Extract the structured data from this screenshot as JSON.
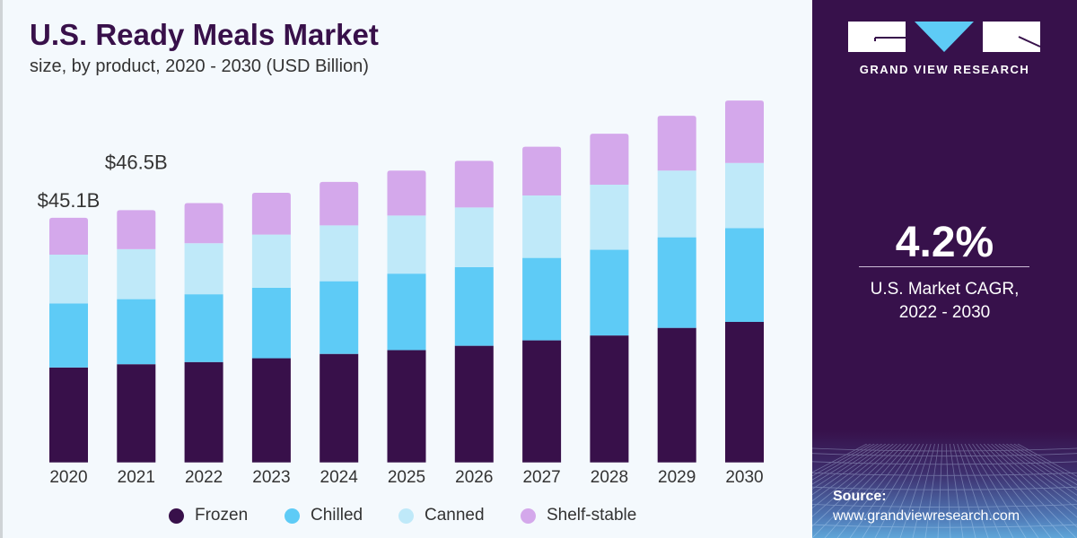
{
  "chart_data": {
    "type": "bar",
    "stacked": true,
    "title": "U.S. Ready Meals Market",
    "subtitle": "size, by product, 2020 - 2030 (USD Billion)",
    "xlabel": "",
    "ylabel": "",
    "ylim": [
      0,
      70
    ],
    "grid": false,
    "legend_placement": "bottom",
    "categories": [
      "2020",
      "2021",
      "2022",
      "2023",
      "2024",
      "2025",
      "2026",
      "2027",
      "2028",
      "2029",
      "2030"
    ],
    "series": [
      {
        "name": "Frozen",
        "color": "#38104a",
        "values": [
          17.5,
          18.1,
          18.5,
          19.2,
          20.0,
          20.7,
          21.5,
          22.5,
          23.4,
          24.8,
          25.9
        ]
      },
      {
        "name": "Chilled",
        "color": "#5ecbf6",
        "values": [
          11.8,
          12.0,
          12.5,
          13.0,
          13.4,
          14.1,
          14.5,
          15.2,
          15.8,
          16.7,
          17.3
        ]
      },
      {
        "name": "Canned",
        "color": "#bfe9f9",
        "values": [
          9.0,
          9.2,
          9.4,
          9.8,
          10.3,
          10.7,
          11.0,
          11.5,
          12.0,
          12.3,
          12.0
        ]
      },
      {
        "name": "Shelf-stable",
        "color": "#d4a8eb",
        "values": [
          6.8,
          7.2,
          7.4,
          7.7,
          8.0,
          8.3,
          8.6,
          9.0,
          9.4,
          10.1,
          11.5
        ]
      }
    ],
    "annotations": [
      {
        "category": "2020",
        "text": "$45.1B"
      },
      {
        "category": "2021",
        "text": "$46.5B"
      }
    ]
  },
  "panel": {
    "brand": "GRAND VIEW RESEARCH",
    "cagr_value": "4.2%",
    "cagr_label_line1": "U.S. Market CAGR,",
    "cagr_label_line2": "2022 - 2030",
    "source_label": "Source:",
    "source_url": "www.grandviewresearch.com",
    "accent_color": "#5ecbf6",
    "background_color": "#37114b"
  }
}
